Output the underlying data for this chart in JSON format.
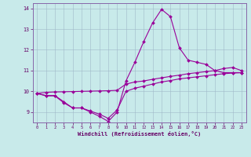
{
  "x": [
    0,
    1,
    2,
    3,
    4,
    5,
    6,
    7,
    8,
    9,
    10,
    11,
    12,
    13,
    14,
    15,
    16,
    17,
    18,
    19,
    20,
    21,
    22,
    23
  ],
  "curve_main": [
    9.9,
    9.8,
    9.8,
    9.5,
    9.2,
    9.2,
    9.0,
    8.8,
    8.55,
    9.0,
    10.5,
    11.4,
    12.4,
    13.3,
    13.95,
    13.6,
    12.1,
    11.5,
    11.4,
    11.3,
    11.0,
    10.9,
    10.9,
    10.9
  ],
  "curve_upper": [
    9.9,
    9.95,
    9.97,
    9.98,
    9.99,
    10.0,
    10.01,
    10.02,
    10.03,
    10.05,
    10.35,
    10.45,
    10.5,
    10.58,
    10.65,
    10.72,
    10.78,
    10.85,
    10.9,
    10.95,
    11.0,
    11.1,
    11.15,
    11.0
  ],
  "curve_lower": [
    9.9,
    9.78,
    9.78,
    9.45,
    9.2,
    9.2,
    9.05,
    8.9,
    8.7,
    9.1,
    10.0,
    10.15,
    10.25,
    10.35,
    10.45,
    10.52,
    10.6,
    10.65,
    10.7,
    10.75,
    10.8,
    10.85,
    10.88,
    10.9
  ],
  "xlabel": "Windchill (Refroidissement éolien,°C)",
  "ylim_min": 8.5,
  "ylim_max": 14.25,
  "xlim_min": -0.5,
  "xlim_max": 23.5,
  "line_color": "#990099",
  "bg_color": "#c8eaea",
  "grid_color": "#a0b8c8",
  "markersize": 2.0,
  "linewidth": 0.8,
  "yticks": [
    9,
    10,
    11,
    12,
    13,
    14
  ],
  "xticks": [
    0,
    1,
    2,
    3,
    4,
    5,
    6,
    7,
    8,
    9,
    10,
    11,
    12,
    13,
    14,
    15,
    16,
    17,
    18,
    19,
    20,
    21,
    22,
    23
  ]
}
